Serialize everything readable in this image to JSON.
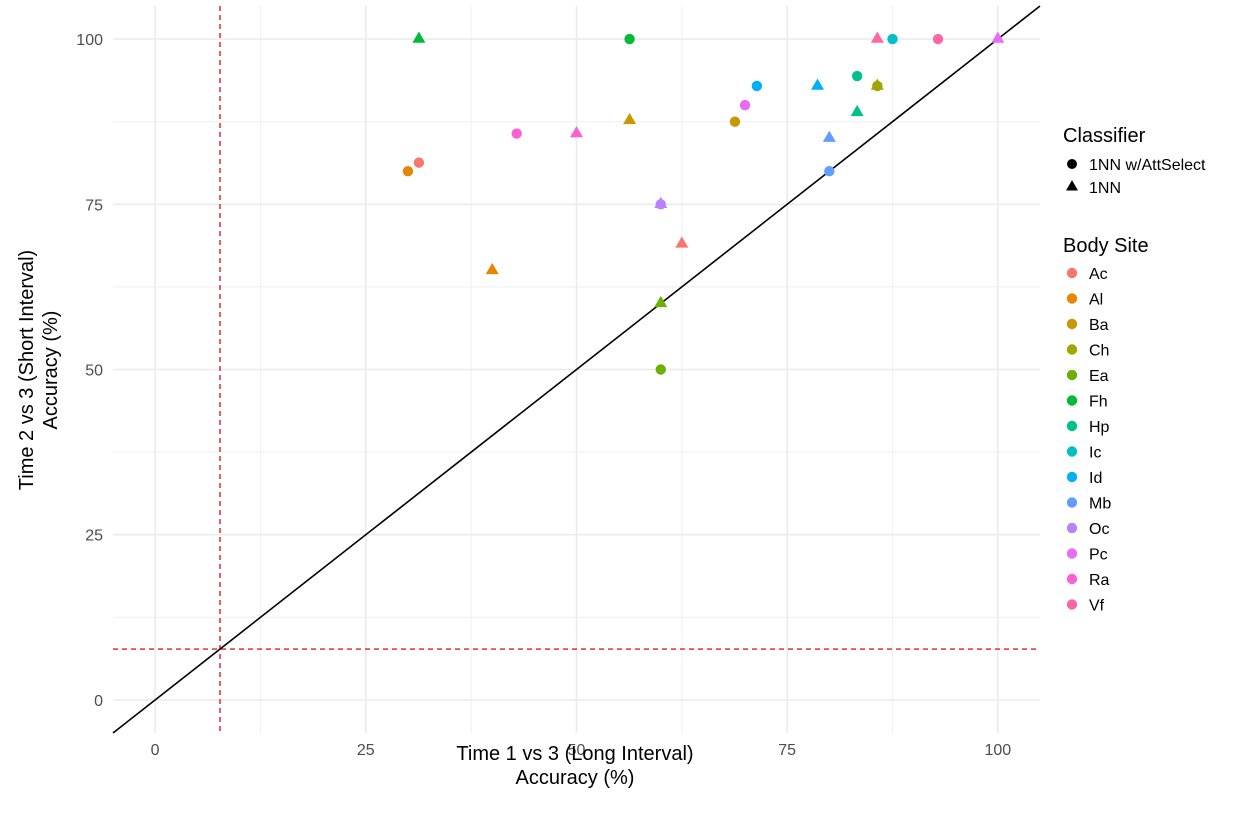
{
  "chart_data": {
    "type": "scatter",
    "title": "",
    "xlabel": [
      "Time 1 vs 3 (Long Interval)",
      "Accuracy (%)"
    ],
    "ylabel": [
      "Time 2 vs 3 (Short Interval)",
      "Accuracy (%)"
    ],
    "xlim": [
      -5,
      105
    ],
    "ylim": [
      -5,
      105
    ],
    "x_ticks": [
      0,
      25,
      50,
      75,
      100
    ],
    "y_ticks": [
      0,
      25,
      50,
      75,
      100
    ],
    "grid": true,
    "reference_lines": {
      "diagonal": "y = x",
      "dashed_x": 7.7,
      "dashed_y": 7.7,
      "dashed_color": "#E41A1C"
    },
    "legend_placement": "right",
    "legend": {
      "classifier_title": "Classifier",
      "classifiers": [
        {
          "label": "1NN w/AttSelect",
          "shape": "circle"
        },
        {
          "label": "1NN",
          "shape": "triangle"
        }
      ],
      "site_title": "Body Site",
      "sites": [
        {
          "label": "Ac",
          "color": "#F8766D"
        },
        {
          "label": "Al",
          "color": "#E58700"
        },
        {
          "label": "Ba",
          "color": "#C99800"
        },
        {
          "label": "Ch",
          "color": "#A3A500"
        },
        {
          "label": "Ea",
          "color": "#6BB100"
        },
        {
          "label": "Fh",
          "color": "#00BA38"
        },
        {
          "label": "Hp",
          "color": "#00C08B"
        },
        {
          "label": "Ic",
          "color": "#00BFC4"
        },
        {
          "label": "Id",
          "color": "#00B0F6"
        },
        {
          "label": "Mb",
          "color": "#619CFF"
        },
        {
          "label": "Oc",
          "color": "#B983FF"
        },
        {
          "label": "Pc",
          "color": "#E76BF3"
        },
        {
          "label": "Ra",
          "color": "#FD61D1"
        },
        {
          "label": "Vf",
          "color": "#FF67A4"
        }
      ]
    },
    "points": [
      {
        "site": "Ac",
        "classifier": "circle",
        "x": 31.3,
        "y": 81.3
      },
      {
        "site": "Ac",
        "classifier": "triangle",
        "x": 62.5,
        "y": 69.0
      },
      {
        "site": "Al",
        "classifier": "circle",
        "x": 30.0,
        "y": 80.0
      },
      {
        "site": "Al",
        "classifier": "triangle",
        "x": 40.0,
        "y": 65.0
      },
      {
        "site": "Ba",
        "classifier": "circle",
        "x": 68.8,
        "y": 87.5
      },
      {
        "site": "Ba",
        "classifier": "triangle",
        "x": 56.3,
        "y": 87.7
      },
      {
        "site": "Ch",
        "classifier": "circle",
        "x": 85.7,
        "y": 92.9
      },
      {
        "site": "Ch",
        "classifier": "triangle",
        "x": 85.7,
        "y": 92.9
      },
      {
        "site": "Ea",
        "classifier": "circle",
        "x": 60.0,
        "y": 50.0
      },
      {
        "site": "Ea",
        "classifier": "triangle",
        "x": 60.0,
        "y": 60.0
      },
      {
        "site": "Fh",
        "classifier": "circle",
        "x": 56.3,
        "y": 100.0
      },
      {
        "site": "Fh",
        "classifier": "triangle",
        "x": 31.3,
        "y": 100.0
      },
      {
        "site": "Hp",
        "classifier": "circle",
        "x": 83.3,
        "y": 94.4
      },
      {
        "site": "Hp",
        "classifier": "triangle",
        "x": 83.3,
        "y": 88.9
      },
      {
        "site": "Ic",
        "classifier": "circle",
        "x": 87.5,
        "y": 100.0
      },
      {
        "site": "Id",
        "classifier": "circle",
        "x": 71.4,
        "y": 92.9
      },
      {
        "site": "Id",
        "classifier": "triangle",
        "x": 78.6,
        "y": 92.9
      },
      {
        "site": "Mb",
        "classifier": "circle",
        "x": 80.0,
        "y": 80.0
      },
      {
        "site": "Mb",
        "classifier": "triangle",
        "x": 80.0,
        "y": 85.0
      },
      {
        "site": "Oc",
        "classifier": "circle",
        "x": 60.0,
        "y": 75.0
      },
      {
        "site": "Oc",
        "classifier": "triangle",
        "x": 60.0,
        "y": 75.0
      },
      {
        "site": "Pc",
        "classifier": "circle",
        "x": 70.0,
        "y": 90.0
      },
      {
        "site": "Pc",
        "classifier": "triangle",
        "x": 100.0,
        "y": 100.0
      },
      {
        "site": "Ra",
        "classifier": "circle",
        "x": 42.9,
        "y": 85.7
      },
      {
        "site": "Ra",
        "classifier": "triangle",
        "x": 50.0,
        "y": 85.7
      },
      {
        "site": "Vf",
        "classifier": "circle",
        "x": 92.9,
        "y": 100.0
      },
      {
        "site": "Vf",
        "classifier": "triangle",
        "x": 85.7,
        "y": 100.0
      }
    ]
  }
}
